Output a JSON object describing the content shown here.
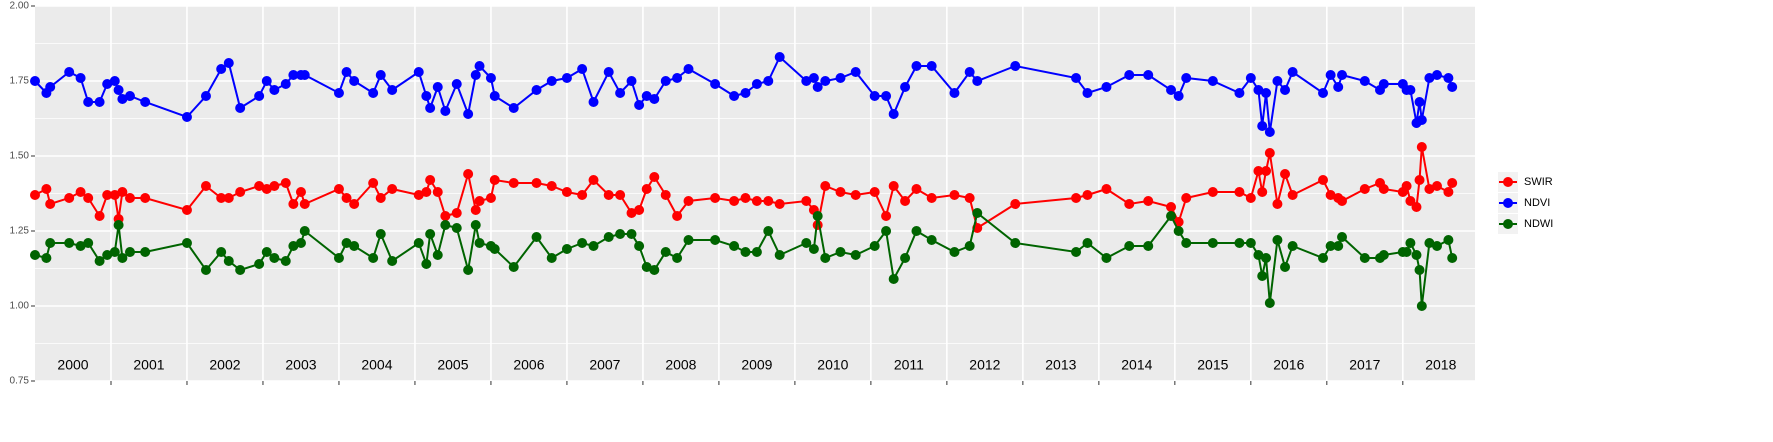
{
  "chart_data": {
    "type": "line",
    "x": [
      2000.0,
      2000.15,
      2000.2,
      2000.45,
      2000.6,
      2000.7,
      2000.85,
      2000.95,
      2001.05,
      2001.1,
      2001.15,
      2001.25,
      2001.45,
      2002.0,
      2002.25,
      2002.45,
      2002.55,
      2002.7,
      2002.95,
      2003.05,
      2003.15,
      2003.3,
      2003.4,
      2003.5,
      2003.55,
      2004.0,
      2004.1,
      2004.2,
      2004.45,
      2004.55,
      2004.7,
      2005.05,
      2005.15,
      2005.2,
      2005.3,
      2005.4,
      2005.55,
      2005.7,
      2005.8,
      2005.85,
      2006.0,
      2006.05,
      2006.3,
      2006.6,
      2006.8,
      2007.0,
      2007.2,
      2007.35,
      2007.55,
      2007.7,
      2007.85,
      2007.95,
      2008.05,
      2008.15,
      2008.3,
      2008.45,
      2008.6,
      2008.95,
      2009.2,
      2009.35,
      2009.5,
      2009.65,
      2009.8,
      2010.15,
      2010.25,
      2010.3,
      2010.4,
      2010.6,
      2010.8,
      2011.05,
      2011.2,
      2011.3,
      2011.45,
      2011.6,
      2011.8,
      2012.1,
      2012.3,
      2012.4,
      2012.9,
      2013.7,
      2013.85,
      2014.1,
      2014.4,
      2014.65,
      2014.95,
      2015.05,
      2015.15,
      2015.5,
      2015.85,
      2016.0,
      2016.1,
      2016.15,
      2016.2,
      2016.25,
      2016.35,
      2016.45,
      2016.55,
      2016.95,
      2017.05,
      2017.15,
      2017.2,
      2017.5,
      2017.7,
      2017.75,
      2018.0,
      2018.05,
      2018.1,
      2018.18,
      2018.22,
      2018.25,
      2018.35,
      2018.45,
      2018.6,
      2018.65
    ],
    "series": [
      {
        "name": "SWIR",
        "color": "#ff0000",
        "values": [
          1.37,
          1.39,
          1.34,
          1.36,
          1.38,
          1.36,
          1.3,
          1.37,
          1.37,
          1.29,
          1.38,
          1.36,
          1.36,
          1.32,
          1.4,
          1.36,
          1.36,
          1.38,
          1.4,
          1.39,
          1.4,
          1.41,
          1.34,
          1.38,
          1.34,
          1.39,
          1.36,
          1.34,
          1.41,
          1.36,
          1.39,
          1.37,
          1.38,
          1.42,
          1.38,
          1.3,
          1.31,
          1.44,
          1.32,
          1.35,
          1.36,
          1.42,
          1.41,
          1.41,
          1.4,
          1.38,
          1.37,
          1.42,
          1.37,
          1.37,
          1.31,
          1.32,
          1.39,
          1.43,
          1.37,
          1.3,
          1.35,
          1.36,
          1.35,
          1.36,
          1.35,
          1.35,
          1.34,
          1.35,
          1.32,
          1.27,
          1.4,
          1.38,
          1.37,
          1.38,
          1.3,
          1.4,
          1.35,
          1.39,
          1.36,
          1.37,
          1.36,
          1.26,
          1.34,
          1.36,
          1.37,
          1.39,
          1.34,
          1.35,
          1.33,
          1.28,
          1.36,
          1.38,
          1.38,
          1.36,
          1.45,
          1.38,
          1.45,
          1.51,
          1.34,
          1.44,
          1.37,
          1.42,
          1.37,
          1.36,
          1.35,
          1.39,
          1.41,
          1.39,
          1.38,
          1.4,
          1.35,
          1.33,
          1.42,
          1.53,
          1.39,
          1.4,
          1.38,
          1.41
        ]
      },
      {
        "name": "NDVI",
        "color": "#0000ff",
        "values": [
          1.75,
          1.71,
          1.73,
          1.78,
          1.76,
          1.68,
          1.68,
          1.74,
          1.75,
          1.72,
          1.69,
          1.7,
          1.68,
          1.63,
          1.7,
          1.79,
          1.81,
          1.66,
          1.7,
          1.75,
          1.72,
          1.74,
          1.77,
          1.77,
          1.77,
          1.71,
          1.78,
          1.75,
          1.71,
          1.77,
          1.72,
          1.78,
          1.7,
          1.66,
          1.73,
          1.65,
          1.74,
          1.64,
          1.77,
          1.8,
          1.76,
          1.7,
          1.66,
          1.72,
          1.75,
          1.76,
          1.79,
          1.68,
          1.78,
          1.71,
          1.75,
          1.67,
          1.7,
          1.69,
          1.75,
          1.76,
          1.79,
          1.74,
          1.7,
          1.71,
          1.74,
          1.75,
          1.83,
          1.75,
          1.76,
          1.73,
          1.75,
          1.76,
          1.78,
          1.7,
          1.7,
          1.64,
          1.73,
          1.8,
          1.8,
          1.71,
          1.78,
          1.75,
          1.8,
          1.76,
          1.71,
          1.73,
          1.77,
          1.77,
          1.72,
          1.7,
          1.76,
          1.75,
          1.71,
          1.76,
          1.72,
          1.6,
          1.71,
          1.58,
          1.75,
          1.72,
          1.78,
          1.71,
          1.77,
          1.73,
          1.77,
          1.75,
          1.72,
          1.74,
          1.74,
          1.72,
          1.72,
          1.61,
          1.68,
          1.62,
          1.76,
          1.77,
          1.76,
          1.73
        ]
      },
      {
        "name": "NDWI",
        "color": "#006400",
        "values": [
          1.17,
          1.16,
          1.21,
          1.21,
          1.2,
          1.21,
          1.15,
          1.17,
          1.18,
          1.27,
          1.16,
          1.18,
          1.18,
          1.21,
          1.12,
          1.18,
          1.15,
          1.12,
          1.14,
          1.18,
          1.16,
          1.15,
          1.2,
          1.21,
          1.25,
          1.16,
          1.21,
          1.2,
          1.16,
          1.24,
          1.15,
          1.21,
          1.14,
          1.24,
          1.17,
          1.27,
          1.26,
          1.12,
          1.27,
          1.21,
          1.2,
          1.19,
          1.13,
          1.23,
          1.16,
          1.19,
          1.21,
          1.2,
          1.23,
          1.24,
          1.24,
          1.2,
          1.13,
          1.12,
          1.18,
          1.16,
          1.22,
          1.22,
          1.2,
          1.18,
          1.18,
          1.25,
          1.17,
          1.21,
          1.19,
          1.3,
          1.16,
          1.18,
          1.17,
          1.2,
          1.25,
          1.09,
          1.16,
          1.25,
          1.22,
          1.18,
          1.2,
          1.31,
          1.21,
          1.18,
          1.21,
          1.16,
          1.2,
          1.2,
          1.3,
          1.25,
          1.21,
          1.21,
          1.21,
          1.21,
          1.17,
          1.1,
          1.16,
          1.01,
          1.22,
          1.13,
          1.2,
          1.16,
          1.2,
          1.2,
          1.23,
          1.16,
          1.16,
          1.17,
          1.18,
          1.18,
          1.21,
          1.17,
          1.12,
          1.0,
          1.21,
          1.2,
          1.22,
          1.16
        ]
      }
    ],
    "xlim": [
      2000.0,
      2018.95
    ],
    "xgrid": [
      2001,
      2002,
      2003,
      2004,
      2005,
      2006,
      2007,
      2008,
      2009,
      2010,
      2011,
      2012,
      2013,
      2014,
      2015,
      2016,
      2017,
      2018
    ],
    "xticks": [
      {
        "value": 2000.5,
        "label": "2000"
      },
      {
        "value": 2001.5,
        "label": "2001"
      },
      {
        "value": 2002.5,
        "label": "2002"
      },
      {
        "value": 2003.5,
        "label": "2003"
      },
      {
        "value": 2004.5,
        "label": "2004"
      },
      {
        "value": 2005.5,
        "label": "2005"
      },
      {
        "value": 2006.5,
        "label": "2006"
      },
      {
        "value": 2007.5,
        "label": "2007"
      },
      {
        "value": 2008.5,
        "label": "2008"
      },
      {
        "value": 2009.5,
        "label": "2009"
      },
      {
        "value": 2010.5,
        "label": "2010"
      },
      {
        "value": 2011.5,
        "label": "2011"
      },
      {
        "value": 2012.5,
        "label": "2012"
      },
      {
        "value": 2013.5,
        "label": "2013"
      },
      {
        "value": 2014.5,
        "label": "2014"
      },
      {
        "value": 2015.5,
        "label": "2015"
      },
      {
        "value": 2016.5,
        "label": "2016"
      },
      {
        "value": 2017.5,
        "label": "2017"
      },
      {
        "value": 2018.5,
        "label": "2018"
      }
    ],
    "ylim": [
      0.75,
      2.0
    ],
    "yticks": [
      {
        "value": 0.75,
        "label": "0.75"
      },
      {
        "value": 1.0,
        "label": "1.00"
      },
      {
        "value": 1.25,
        "label": "1.25"
      },
      {
        "value": 1.5,
        "label": "1.50"
      },
      {
        "value": 1.75,
        "label": "1.75"
      },
      {
        "value": 2.0,
        "label": "2.00"
      }
    ],
    "grid": true,
    "legend": "right"
  }
}
